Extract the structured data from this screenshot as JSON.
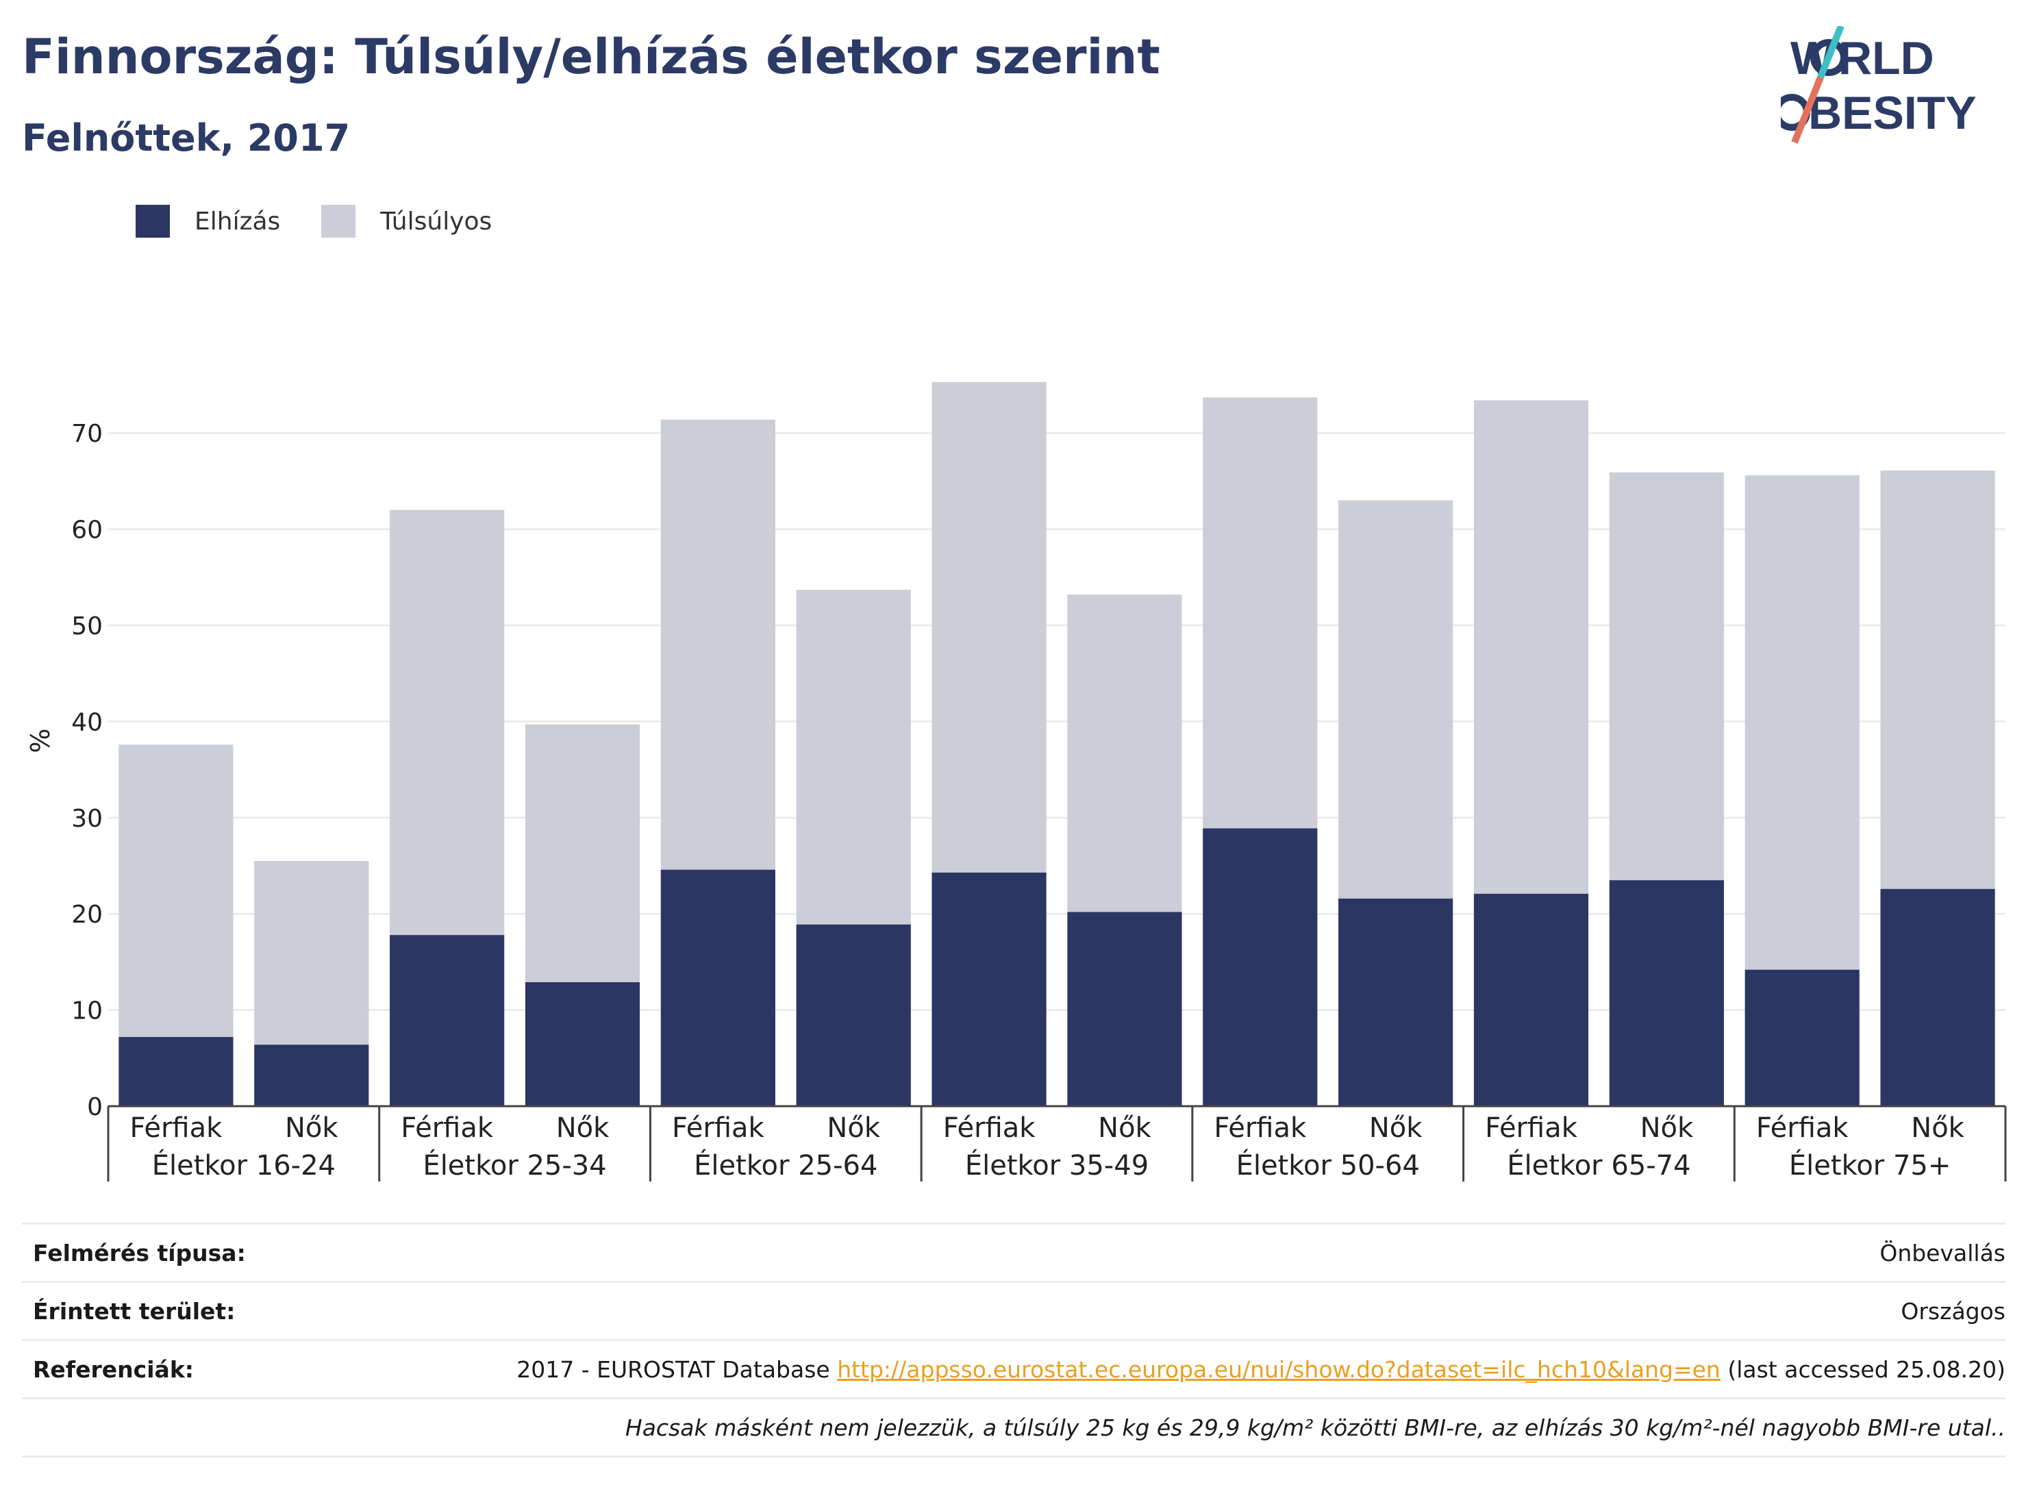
{
  "header": {
    "title": "Finnország: Túlsúly/elhízás életkor szerint",
    "subtitle": "Felnőttek, 2017"
  },
  "logo": {
    "line1": "WORLD",
    "line2": "OBESITY"
  },
  "legend": {
    "items": [
      {
        "label": "Elhízás",
        "color": "#2b3663"
      },
      {
        "label": "Túlsúlyos",
        "color": "#cbcdd8"
      }
    ]
  },
  "chart_data": {
    "type": "bar",
    "stacked": true,
    "ylabel": "%",
    "ylim": [
      0,
      76
    ],
    "yticks": [
      0,
      10,
      20,
      30,
      40,
      50,
      60,
      70
    ],
    "grid": true,
    "legend_position": "top-left",
    "groups": [
      "Életkor 16-24",
      "Életkor 25-34",
      "Életkor 25-64",
      "Életkor 35-49",
      "Életkor 50-64",
      "Életkor 65-74",
      "Életkor 75+"
    ],
    "subcategories": [
      "Férfiak",
      "Nők"
    ],
    "series": [
      {
        "name": "Elhízás",
        "color": "#2b3663",
        "values": [
          7.2,
          6.4,
          17.8,
          12.9,
          24.6,
          18.9,
          24.3,
          20.2,
          28.9,
          21.6,
          22.1,
          23.5,
          14.2,
          22.6
        ]
      },
      {
        "name": "Túlsúlyos",
        "color": "#cbcdd8",
        "values": [
          30.4,
          19.1,
          44.2,
          26.8,
          46.8,
          34.8,
          51.0,
          33.0,
          44.8,
          41.4,
          51.3,
          42.4,
          51.4,
          43.5
        ]
      }
    ]
  },
  "info": {
    "rows": [
      {
        "label": "Felmérés típusa:",
        "value": "Önbevallás"
      },
      {
        "label": "Érintett terület:",
        "value": "Országos"
      },
      {
        "label": "Referenciák:",
        "prefix": "2017 - EUROSTAT Database ",
        "link": "http://appsso.eurostat.ec.europa.eu/nui/show.do?dataset=ilc_hch10&lang=en",
        "suffix": " (last accessed 25.08.20)"
      }
    ],
    "note": "Hacsak másként nem jelezzük, a túlsúly 25 kg és 29,9 kg/m² közötti BMI-re, az elhízás 30 kg/m²-nél nagyobb BMI-re utal.."
  }
}
